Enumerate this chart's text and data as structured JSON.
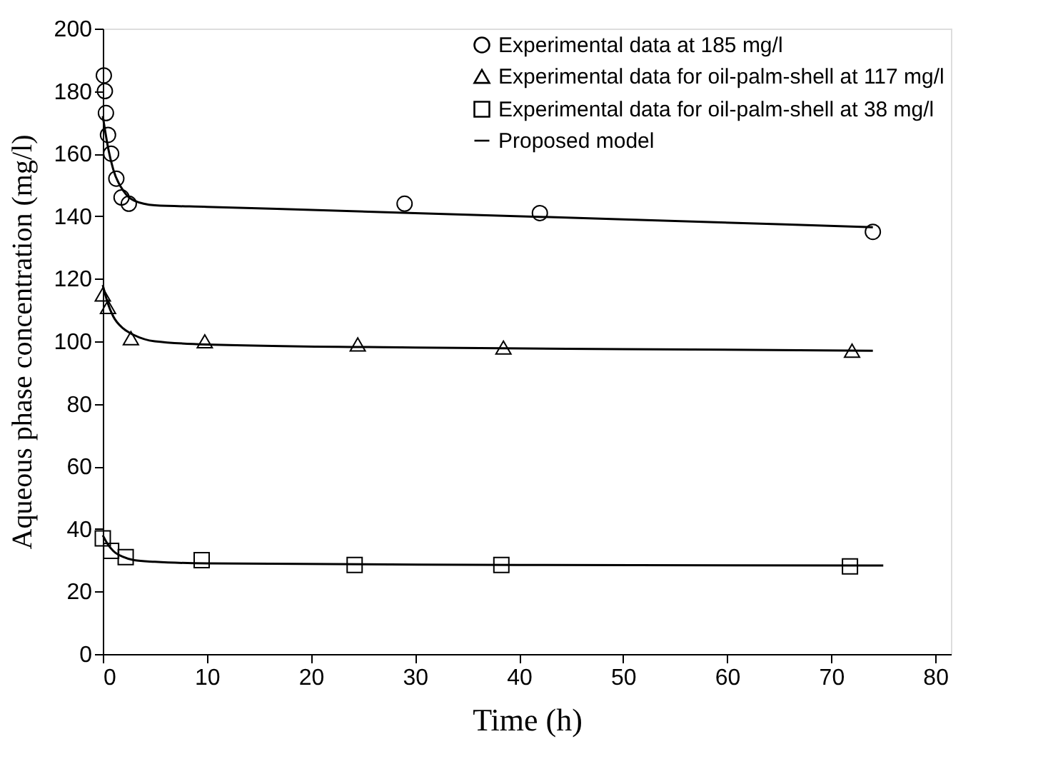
{
  "chart_data": {
    "type": "scatter",
    "xlabel": "Time (h)",
    "ylabel": "Aqueous phase concentration (mg/l)",
    "xlim": [
      0,
      81.5
    ],
    "ylim": [
      0,
      200
    ],
    "xticks": [
      0,
      10,
      20,
      30,
      40,
      50,
      60,
      70,
      80
    ],
    "yticks": [
      0,
      20,
      40,
      60,
      80,
      100,
      120,
      140,
      160,
      180,
      200
    ],
    "grid": false,
    "legend": "top right",
    "series": [
      {
        "name": "Experimental data at 185 mg/l",
        "marker": "circle",
        "color": "#000000",
        "x": [
          0.1,
          0.2,
          0.3,
          0.5,
          0.8,
          1.3,
          1.8,
          2.5,
          29,
          42,
          74
        ],
        "values": [
          185,
          180,
          173,
          166,
          160,
          152,
          146,
          144,
          144,
          141,
          135
        ]
      },
      {
        "name": "Experimental data for oil-palm-shell at 117 mg/l",
        "marker": "triangle",
        "color": "#000000",
        "x": [
          0,
          0.5,
          2.7,
          9.8,
          24.5,
          38.5,
          72
        ],
        "values": [
          115,
          111,
          101,
          100,
          99,
          98,
          97
        ]
      },
      {
        "name": "Experimental data for oil-palm-shell at 38 mg/l",
        "marker": "square",
        "color": "#000000",
        "x": [
          0,
          0.8,
          2.2,
          9.5,
          24.2,
          38.3,
          71.8
        ],
        "values": [
          37,
          33,
          31,
          30,
          28.5,
          28.5,
          28
        ]
      },
      {
        "name": "Proposed model",
        "type": "line",
        "marker": "none",
        "line_style": "solid",
        "color": "#000000",
        "x": [
          0,
          0.5,
          1,
          2,
          3,
          5,
          10,
          30,
          50,
          74
        ],
        "values": [
          172,
          162,
          155,
          148,
          145,
          143.5,
          143,
          141,
          139,
          136.5
        ]
      },
      {
        "type": "line",
        "marker": "none",
        "line_style": "solid",
        "color": "#000000",
        "x": [
          0,
          0.5,
          1,
          2,
          3,
          5,
          10,
          30,
          50,
          74
        ],
        "values": [
          118,
          112,
          108,
          104,
          102,
          100,
          99,
          98,
          97.5,
          97
        ]
      },
      {
        "type": "line",
        "marker": "none",
        "line_style": "solid",
        "color": "#000000",
        "x": [
          0,
          0.5,
          1,
          2,
          3,
          5,
          10,
          40,
          75
        ],
        "values": [
          38,
          35,
          33,
          31,
          30,
          29.5,
          29,
          28.5,
          28.3
        ]
      }
    ]
  }
}
